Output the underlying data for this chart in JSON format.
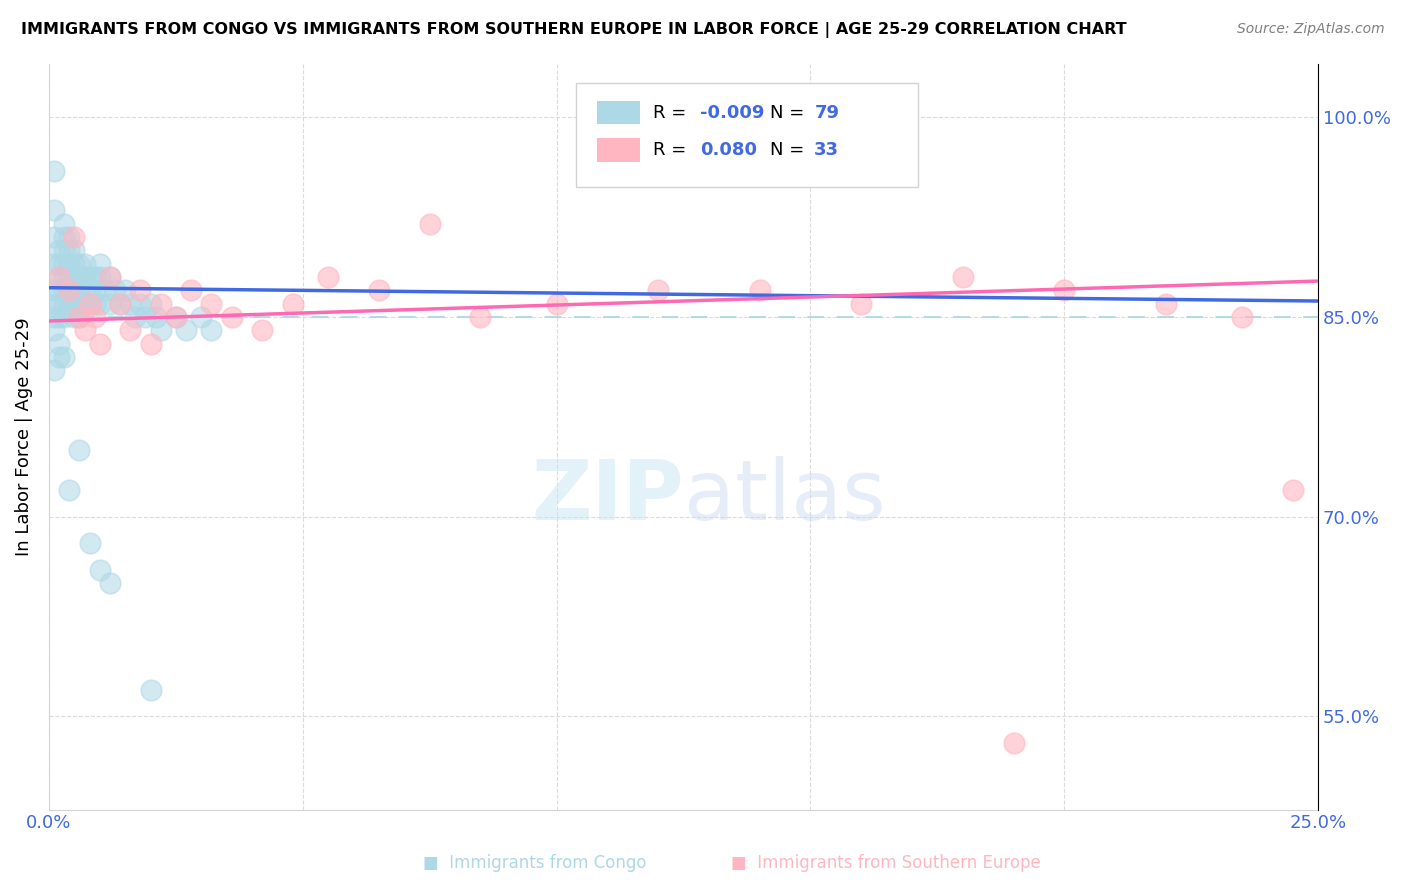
{
  "title": "IMMIGRANTS FROM CONGO VS IMMIGRANTS FROM SOUTHERN EUROPE IN LABOR FORCE | AGE 25-29 CORRELATION CHART",
  "source": "Source: ZipAtlas.com",
  "ylabel": "In Labor Force | Age 25-29",
  "xlim": [
    0.0,
    0.25
  ],
  "ylim": [
    0.48,
    1.04
  ],
  "xtick_labels": [
    "0.0%",
    "",
    "",
    "",
    "",
    "25.0%"
  ],
  "ytick_positions": [
    0.55,
    0.7,
    0.85,
    1.0
  ],
  "ytick_labels": [
    "55.0%",
    "70.0%",
    "85.0%",
    "100.0%"
  ],
  "R_congo": -0.009,
  "N_congo": 79,
  "R_se": 0.08,
  "N_se": 33,
  "legend_R_color": "#4169E1",
  "congo_color": "#ADD8E6",
  "se_color": "#FFB6C1",
  "congo_line_color": "#4169E1",
  "se_line_color": "#FF69B4",
  "ref_line_y": 0.85,
  "ref_line_color": "#ADD8E6",
  "congo_x": [
    0.001,
    0.001,
    0.001,
    0.001,
    0.001,
    0.001,
    0.001,
    0.002,
    0.002,
    0.002,
    0.002,
    0.002,
    0.002,
    0.003,
    0.003,
    0.003,
    0.003,
    0.003,
    0.003,
    0.003,
    0.003,
    0.004,
    0.004,
    0.004,
    0.004,
    0.004,
    0.004,
    0.005,
    0.005,
    0.005,
    0.005,
    0.005,
    0.005,
    0.006,
    0.006,
    0.006,
    0.006,
    0.006,
    0.007,
    0.007,
    0.007,
    0.007,
    0.008,
    0.008,
    0.008,
    0.009,
    0.009,
    0.009,
    0.01,
    0.01,
    0.01,
    0.011,
    0.012,
    0.012,
    0.013,
    0.014,
    0.015,
    0.016,
    0.017,
    0.018,
    0.019,
    0.02,
    0.021,
    0.022,
    0.025,
    0.027,
    0.03,
    0.032,
    0.001,
    0.002,
    0.003,
    0.002,
    0.001,
    0.004,
    0.006,
    0.008,
    0.01,
    0.012,
    0.02
  ],
  "congo_y": [
    0.96,
    0.93,
    0.91,
    0.89,
    0.87,
    0.86,
    0.85,
    0.9,
    0.89,
    0.88,
    0.87,
    0.86,
    0.85,
    0.92,
    0.91,
    0.9,
    0.89,
    0.88,
    0.87,
    0.86,
    0.85,
    0.91,
    0.9,
    0.89,
    0.88,
    0.87,
    0.86,
    0.9,
    0.89,
    0.88,
    0.87,
    0.86,
    0.85,
    0.89,
    0.88,
    0.87,
    0.86,
    0.85,
    0.89,
    0.88,
    0.87,
    0.86,
    0.88,
    0.87,
    0.86,
    0.88,
    0.87,
    0.86,
    0.89,
    0.88,
    0.86,
    0.87,
    0.88,
    0.86,
    0.87,
    0.86,
    0.87,
    0.86,
    0.85,
    0.86,
    0.85,
    0.86,
    0.85,
    0.84,
    0.85,
    0.84,
    0.85,
    0.84,
    0.84,
    0.83,
    0.82,
    0.82,
    0.81,
    0.72,
    0.75,
    0.68,
    0.66,
    0.65,
    0.57
  ],
  "se_x": [
    0.002,
    0.004,
    0.005,
    0.006,
    0.007,
    0.008,
    0.009,
    0.01,
    0.012,
    0.014,
    0.016,
    0.018,
    0.02,
    0.022,
    0.025,
    0.028,
    0.032,
    0.036,
    0.042,
    0.048,
    0.055,
    0.065,
    0.075,
    0.085,
    0.1,
    0.12,
    0.14,
    0.16,
    0.18,
    0.2,
    0.22,
    0.235,
    0.245
  ],
  "se_y": [
    0.88,
    0.87,
    0.91,
    0.85,
    0.84,
    0.86,
    0.85,
    0.83,
    0.88,
    0.86,
    0.84,
    0.87,
    0.83,
    0.86,
    0.85,
    0.87,
    0.86,
    0.85,
    0.84,
    0.86,
    0.88,
    0.87,
    0.92,
    0.85,
    0.86,
    0.87,
    0.87,
    0.86,
    0.88,
    0.87,
    0.86,
    0.85,
    0.72
  ],
  "se_outlier_x": [
    0.19
  ],
  "se_outlier_y": [
    0.53
  ]
}
